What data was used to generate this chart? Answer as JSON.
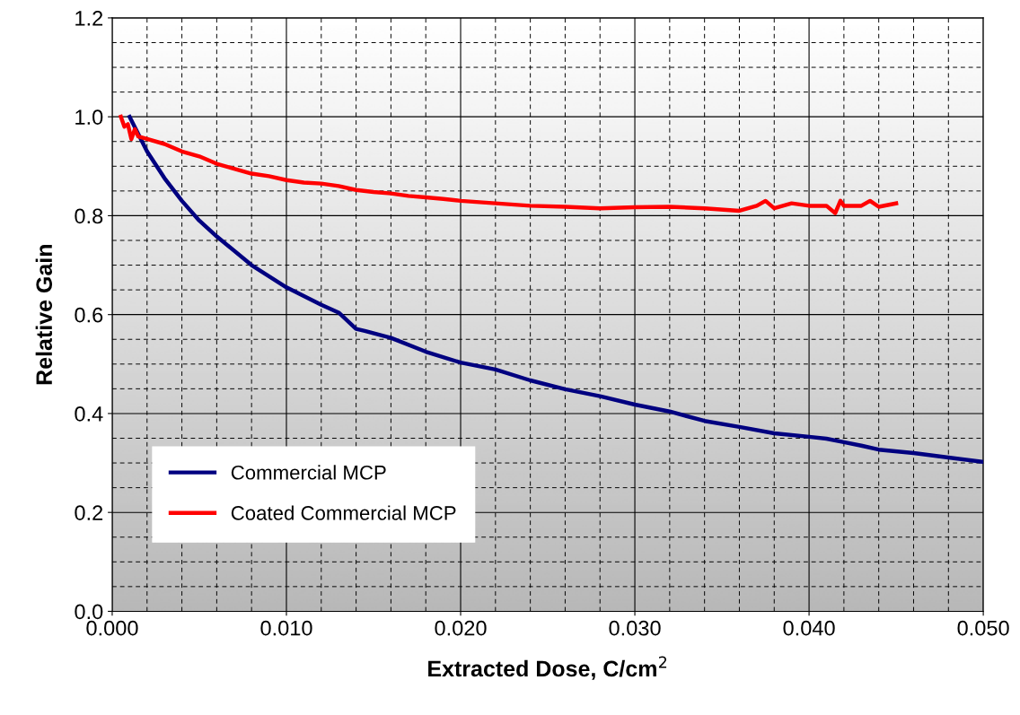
{
  "chart_data": {
    "type": "line",
    "xlabel": "Extracted Dose, C/cm$^{2}$",
    "ylabel": "Relative Gain",
    "xlim": [
      0,
      0.05
    ],
    "ylim": [
      0,
      1.2
    ],
    "xticks": [
      {
        "value": 0,
        "label": "0.000"
      },
      {
        "value": 0.01,
        "label": "0.010"
      },
      {
        "value": 0.02,
        "label": "0.020"
      },
      {
        "value": 0.03,
        "label": "0.030"
      },
      {
        "value": 0.04,
        "label": "0.040"
      },
      {
        "value": 0.05,
        "label": "0.050"
      }
    ],
    "yticks": [
      {
        "value": 0,
        "label": "0.0"
      },
      {
        "value": 0.2,
        "label": "0.2"
      },
      {
        "value": 0.4,
        "label": "0.4"
      },
      {
        "value": 0.6,
        "label": "0.6"
      },
      {
        "value": 0.8,
        "label": "0.8"
      },
      {
        "value": 1.0,
        "label": "1.0"
      },
      {
        "value": 1.2,
        "label": "1.2"
      }
    ],
    "grid": true,
    "legend": "bottom left",
    "marker": "none",
    "line_style": "solid",
    "series": [
      {
        "name": "Commercial MCP",
        "color": "#000080",
        "x": [
          0.001,
          0.002,
          0.003,
          0.004,
          0.005,
          0.006,
          0.008,
          0.01,
          0.012,
          0.013,
          0.014,
          0.0145,
          0.016,
          0.018,
          0.02,
          0.022,
          0.024,
          0.026,
          0.028,
          0.03,
          0.032,
          0.034,
          0.036,
          0.038,
          0.04,
          0.041,
          0.042,
          0.043,
          0.044,
          0.046,
          0.048,
          0.05
        ],
        "values": [
          1.0,
          0.93,
          0.876,
          0.83,
          0.79,
          0.758,
          0.7,
          0.655,
          0.62,
          0.604,
          0.571,
          0.567,
          0.553,
          0.525,
          0.503,
          0.489,
          0.467,
          0.449,
          0.435,
          0.418,
          0.404,
          0.385,
          0.373,
          0.36,
          0.353,
          0.349,
          0.342,
          0.335,
          0.327,
          0.32,
          0.311,
          0.302
        ]
      },
      {
        "name": "Coated Commercial MCP",
        "color": "#ff0000",
        "x": [
          0.0005,
          0.0007,
          0.0009,
          0.0011,
          0.0013,
          0.0015,
          0.002,
          0.003,
          0.004,
          0.005,
          0.006,
          0.007,
          0.008,
          0.009,
          0.01,
          0.011,
          0.012,
          0.013,
          0.014,
          0.015,
          0.016,
          0.017,
          0.018,
          0.019,
          0.02,
          0.022,
          0.024,
          0.026,
          0.028,
          0.03,
          0.032,
          0.034,
          0.036,
          0.037,
          0.0375,
          0.038,
          0.039,
          0.04,
          0.041,
          0.0415,
          0.0418,
          0.042,
          0.043,
          0.0435,
          0.044,
          0.045
        ],
        "values": [
          1.0,
          0.98,
          0.985,
          0.955,
          0.975,
          0.96,
          0.955,
          0.945,
          0.93,
          0.92,
          0.905,
          0.895,
          0.885,
          0.88,
          0.872,
          0.867,
          0.865,
          0.86,
          0.852,
          0.848,
          0.845,
          0.84,
          0.837,
          0.834,
          0.83,
          0.825,
          0.82,
          0.818,
          0.815,
          0.817,
          0.818,
          0.815,
          0.81,
          0.82,
          0.83,
          0.815,
          0.825,
          0.82,
          0.82,
          0.805,
          0.83,
          0.82,
          0.82,
          0.83,
          0.818,
          0.825
        ]
      }
    ]
  }
}
